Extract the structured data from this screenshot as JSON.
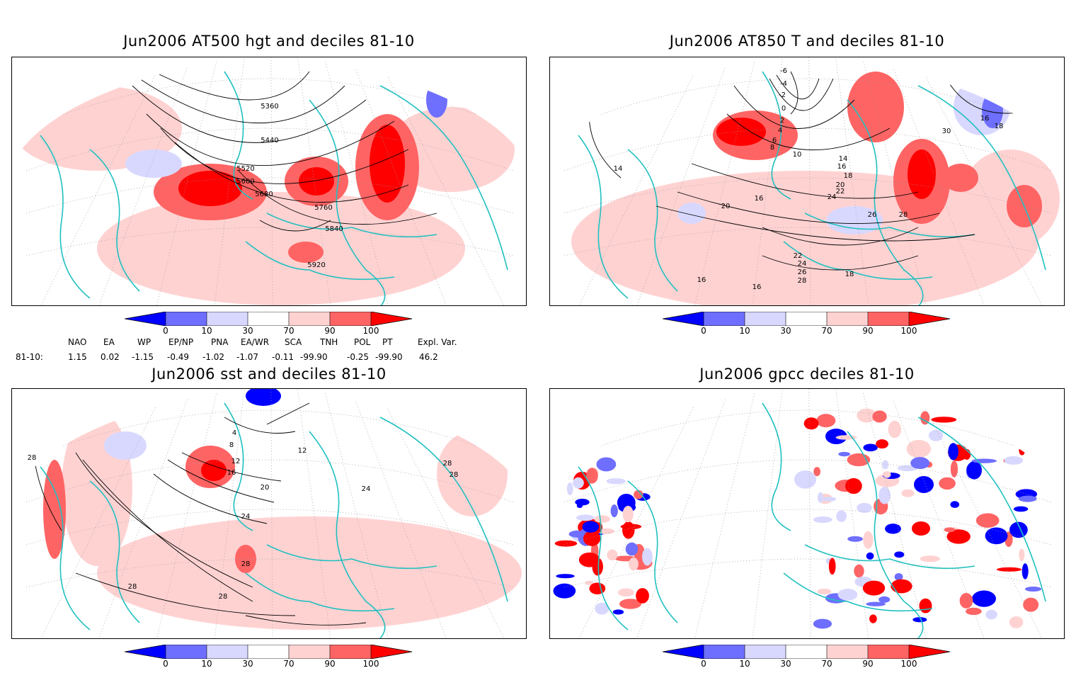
{
  "panels": [
    {
      "id": "z500",
      "title": "Jun2006 AT500 hgt and deciles 81-10",
      "variable": "500hPa geopotential height",
      "contour_labels": [
        "5360",
        "5440",
        "5520",
        "5600",
        "5680",
        "5760",
        "5840",
        "5920"
      ]
    },
    {
      "id": "t850",
      "title": "Jun2006 AT850 T and deciles 81-10",
      "variable": "850hPa temperature",
      "contour_labels": [
        "-6",
        "-4",
        "-2",
        "0",
        "2",
        "4",
        "6",
        "8",
        "10",
        "14",
        "16",
        "18",
        "20",
        "22",
        "24",
        "26",
        "28",
        "30",
        "16",
        "18",
        "14",
        "16",
        "20",
        "22",
        "24",
        "26",
        "28",
        "18",
        "16",
        "16"
      ]
    },
    {
      "id": "sst",
      "title": "Jun2006 sst and deciles 81-10",
      "variable": "sea surface temperature",
      "contour_labels": [
        "28",
        "4",
        "8",
        "12",
        "16",
        "20",
        "24",
        "28",
        "28",
        "28",
        "12",
        "24",
        "28",
        "28"
      ]
    },
    {
      "id": "gpcc",
      "title": "Jun2006 gpcc deciles 81-10",
      "variable": "precipitation (GPCC)",
      "contour_labels": []
    }
  ],
  "colorbar": {
    "ticks": [
      "0",
      "10",
      "30",
      "70",
      "90",
      "100"
    ],
    "colors": [
      "#0000ff",
      "#6e6eff",
      "#d8d8ff",
      "#ffffff",
      "#ffd2d2",
      "#ff6464",
      "#ff0000"
    ]
  },
  "indices": {
    "headers": [
      "NAO",
      "EA",
      "WP",
      "EP/NP",
      "PNA",
      "EA/WR",
      "SCA",
      "TNH",
      "POL",
      "PT",
      "Expl. Var."
    ],
    "row_label": "81-10:",
    "values": [
      "1.15",
      "0.02",
      "-1.15",
      "-0.49",
      "-1.02",
      "-1.07",
      "-0.11",
      "-99.90",
      "-0.25",
      "-99.90",
      "46.2"
    ]
  },
  "colors": {
    "coast": "#20c0c0",
    "contour": "#000000",
    "grid": "#999999"
  },
  "chart_data": [
    {
      "type": "heatmap",
      "title": "Jun2006 AT500 hgt and deciles 81-10",
      "legend": "colorbar bottom",
      "levels": [
        0,
        10,
        30,
        70,
        90,
        100
      ]
    },
    {
      "type": "heatmap",
      "title": "Jun2006 AT850 T and deciles 81-10",
      "legend": "colorbar bottom",
      "levels": [
        0,
        10,
        30,
        70,
        90,
        100
      ]
    },
    {
      "type": "heatmap",
      "title": "Jun2006 sst and deciles 81-10",
      "legend": "colorbar bottom",
      "levels": [
        0,
        10,
        30,
        70,
        90,
        100
      ]
    },
    {
      "type": "heatmap",
      "title": "Jun2006 gpcc deciles 81-10",
      "legend": "colorbar bottom",
      "levels": [
        0,
        10,
        30,
        70,
        90,
        100
      ]
    }
  ]
}
